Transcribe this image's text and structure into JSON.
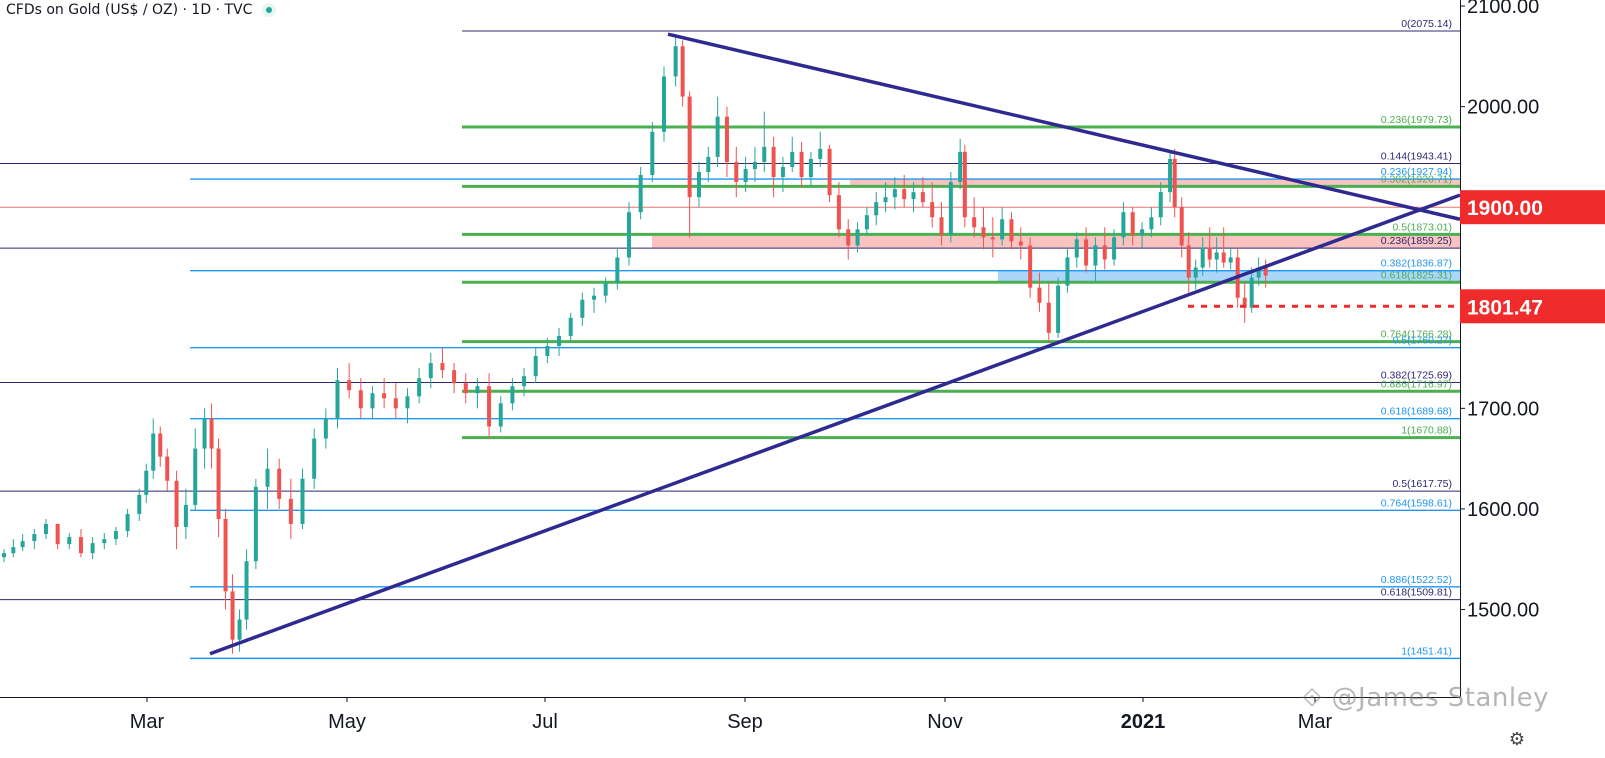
{
  "header": {
    "symbol_title": "CFDs on Gold (US$ / OZ) · 1D · TVC"
  },
  "watermark": "@James Stanley",
  "icons": {
    "settings": "gear-icon",
    "status": "status-dot-icon",
    "watermark_logo": "logo-icon"
  },
  "colors": {
    "up": "#26a69a",
    "down": "#ef5350",
    "trendline": "#2e2a8f",
    "fib_green": "#4caf50",
    "fib_blue": "#2196f3",
    "fib_navy": "#2e2a6f",
    "zone_red": "rgba(239,83,80,0.35)",
    "zone_blue": "rgba(66,165,245,0.45)",
    "price_tag_red": "#ef2b2b"
  },
  "chart_data": {
    "type": "candlestick",
    "title": "CFDs on Gold (US$ / OZ) · 1D · TVC",
    "x_axis": {
      "ticks": [
        "Mar",
        "May",
        "Jul",
        "Sep",
        "Nov",
        "2021",
        "Mar"
      ]
    },
    "y_axis": {
      "ticks": [
        "1500.00",
        "1600.00",
        "1700.00",
        "1800.00",
        "1900.00",
        "2000.00",
        "2100.00"
      ],
      "range": [
        1413,
        2106
      ]
    },
    "price_tags": [
      {
        "label": "1900.00",
        "value": 1900.0
      },
      {
        "label": "1801.47",
        "value": 1801.47
      }
    ],
    "fib_levels": [
      {
        "label": "0(2075.14)",
        "value": 2075.14,
        "set": "navy",
        "x_start": "Jun 2020"
      },
      {
        "label": "0.236(1979.73)",
        "value": 1979.73,
        "set": "green",
        "x_start": "Jun 2020"
      },
      {
        "label": "0.144(1943.41)",
        "value": 1943.41,
        "set": "navy",
        "x_start": "Jan 2020"
      },
      {
        "label": "0.236(1927.94)",
        "value": 1927.94,
        "set": "blue",
        "x_start": "Mar 2020"
      },
      {
        "label": "0.382(1920.71)",
        "value": 1920.71,
        "set": "green",
        "x_start": "Jun 2020"
      },
      {
        "label": "0.5(1873.01)",
        "value": 1873.01,
        "set": "green",
        "x_start": "Jun 2020"
      },
      {
        "label": "0.236(1859.25)",
        "value": 1859.25,
        "set": "navy",
        "x_start": "Jan 2020"
      },
      {
        "label": "0.382(1836.87)",
        "value": 1836.87,
        "set": "blue",
        "x_start": "Mar 2020"
      },
      {
        "label": "0.618(1825.31)",
        "value": 1825.31,
        "set": "green",
        "x_start": "Jun 2020"
      },
      {
        "label": "0.764(1766.28)",
        "value": 1766.28,
        "set": "green",
        "x_start": "Jun 2020"
      },
      {
        "label": "0.5(1760.27)",
        "value": 1760.27,
        "set": "blue",
        "x_start": "Mar 2020"
      },
      {
        "label": "0.382(1725.69)",
        "value": 1725.69,
        "set": "navy",
        "x_start": "Jan 2020"
      },
      {
        "label": "0.886(1716.97)",
        "value": 1716.97,
        "set": "green",
        "x_start": "Jun 2020"
      },
      {
        "label": "0.618(1689.68)",
        "value": 1689.68,
        "set": "blue",
        "x_start": "Mar 2020"
      },
      {
        "label": "1(1670.88)",
        "value": 1670.88,
        "set": "green",
        "x_start": "Jun 2020"
      },
      {
        "label": "0.5(1617.75)",
        "value": 1617.75,
        "set": "navy",
        "x_start": "Jan 2020"
      },
      {
        "label": "0.764(1598.61)",
        "value": 1598.61,
        "set": "blue",
        "x_start": "Mar 2020"
      },
      {
        "label": "0.886(1522.52)",
        "value": 1522.52,
        "set": "blue",
        "x_start": "Mar 2020"
      },
      {
        "label": "0.618(1509.81)",
        "value": 1509.81,
        "set": "navy",
        "x_start": "Jan 2020"
      },
      {
        "label": "1(1451.41)",
        "value": 1451.41,
        "set": "blue",
        "x_start": "Mar 2020"
      }
    ],
    "horizontal_lines": [
      {
        "value": 1900.0,
        "color": "red-thin"
      }
    ],
    "zones": [
      {
        "name": "resistance-zone",
        "from": 1920.7,
        "to": 1927.9,
        "x_start": "Oct 2020",
        "color": "red"
      },
      {
        "name": "resistance-zone",
        "from": 1859.25,
        "to": 1873.0,
        "x_start": "Aug 2020",
        "color": "red"
      },
      {
        "name": "support-zone",
        "from": 1825.3,
        "to": 1836.9,
        "x_start": "Nov 2020",
        "color": "blue"
      }
    ],
    "dotted_line": {
      "value": 1801.47,
      "x_start": "Jan 2021",
      "color": "red"
    },
    "trendlines": [
      {
        "name": "falling-trendline",
        "from": [
          "Aug 7 2020",
          2072
        ],
        "to": [
          "beyond chart",
          1888
        ]
      },
      {
        "name": "rising-trendline",
        "from": [
          "Mar 2020",
          1456
        ],
        "to": [
          "beyond chart",
          1912
        ]
      }
    ],
    "candles": [
      [
        "2020-01-02",
        1552,
        1560,
        1547,
        1556
      ],
      [
        "2020-01-06",
        1556,
        1570,
        1552,
        1562
      ],
      [
        "2020-01-10",
        1562,
        1575,
        1558,
        1568
      ],
      [
        "2020-01-15",
        1568,
        1580,
        1560,
        1575
      ],
      [
        "2020-01-20",
        1575,
        1590,
        1570,
        1585
      ],
      [
        "2020-01-25",
        1585,
        1582,
        1560,
        1565
      ],
      [
        "2020-01-30",
        1565,
        1576,
        1560,
        1572
      ],
      [
        "2020-02-04",
        1572,
        1580,
        1552,
        1556
      ],
      [
        "2020-02-09",
        1556,
        1572,
        1550,
        1566
      ],
      [
        "2020-02-14",
        1566,
        1576,
        1560,
        1570
      ],
      [
        "2020-02-19",
        1570,
        1582,
        1564,
        1578
      ],
      [
        "2020-02-24",
        1578,
        1600,
        1572,
        1595
      ],
      [
        "2020-02-29",
        1595,
        1620,
        1588,
        1614
      ],
      [
        "2020-03-03",
        1614,
        1645,
        1606,
        1638
      ],
      [
        "2020-03-06",
        1638,
        1690,
        1630,
        1675
      ],
      [
        "2020-03-09",
        1675,
        1682,
        1642,
        1652
      ],
      [
        "2020-03-12",
        1652,
        1660,
        1618,
        1628
      ],
      [
        "2020-03-16",
        1628,
        1638,
        1560,
        1582
      ],
      [
        "2020-03-20",
        1582,
        1620,
        1570,
        1604
      ],
      [
        "2020-03-24",
        1604,
        1680,
        1598,
        1660
      ],
      [
        "2020-03-28",
        1660,
        1700,
        1640,
        1690
      ],
      [
        "2020-03-31",
        1690,
        1705,
        1640,
        1660
      ],
      [
        "2020-04-03",
        1660,
        1670,
        1572,
        1590
      ],
      [
        "2020-04-06",
        1590,
        1600,
        1500,
        1518
      ],
      [
        "2020-04-09",
        1518,
        1535,
        1456,
        1470
      ],
      [
        "2020-04-12",
        1470,
        1500,
        1458,
        1490
      ],
      [
        "2020-04-15",
        1490,
        1560,
        1480,
        1548
      ],
      [
        "2020-04-19",
        1548,
        1630,
        1540,
        1622
      ],
      [
        "2020-04-24",
        1622,
        1660,
        1600,
        1640
      ],
      [
        "2020-04-29",
        1640,
        1650,
        1600,
        1610
      ],
      [
        "2020-05-04",
        1610,
        1630,
        1570,
        1585
      ],
      [
        "2020-05-09",
        1585,
        1640,
        1580,
        1630
      ],
      [
        "2020-05-14",
        1630,
        1680,
        1620,
        1670
      ],
      [
        "2020-05-19",
        1670,
        1700,
        1660,
        1690
      ],
      [
        "2020-05-24",
        1690,
        1740,
        1680,
        1728
      ],
      [
        "2020-05-29",
        1728,
        1745,
        1710,
        1718
      ],
      [
        "2020-06-03",
        1718,
        1730,
        1690,
        1700
      ],
      [
        "2020-06-08",
        1700,
        1722,
        1690,
        1715
      ],
      [
        "2020-06-13",
        1715,
        1730,
        1700,
        1710
      ],
      [
        "2020-06-18",
        1710,
        1725,
        1690,
        1700
      ],
      [
        "2020-06-23",
        1700,
        1720,
        1685,
        1712
      ],
      [
        "2020-06-28",
        1712,
        1740,
        1705,
        1730
      ],
      [
        "2020-07-03",
        1730,
        1755,
        1720,
        1745
      ],
      [
        "2020-07-08",
        1745,
        1760,
        1730,
        1738
      ],
      [
        "2020-07-13",
        1738,
        1745,
        1715,
        1725
      ],
      [
        "2020-07-18",
        1725,
        1735,
        1705,
        1715
      ],
      [
        "2020-07-23",
        1715,
        1730,
        1700,
        1722
      ],
      [
        "2020-07-28",
        1722,
        1735,
        1670,
        1682
      ],
      [
        "2020-08-02",
        1682,
        1712,
        1676,
        1705
      ],
      [
        "2020-08-07",
        1705,
        1730,
        1698,
        1722
      ],
      [
        "2020-08-12",
        1722,
        1740,
        1712,
        1732
      ],
      [
        "2020-08-17",
        1732,
        1760,
        1725,
        1752
      ],
      [
        "2020-08-22",
        1752,
        1770,
        1745,
        1762
      ],
      [
        "2020-08-27",
        1762,
        1780,
        1752,
        1772
      ],
      [
        "2020-09-01",
        1772,
        1795,
        1765,
        1790
      ],
      [
        "2020-09-06",
        1790,
        1815,
        1782,
        1808
      ],
      [
        "2020-09-11",
        1808,
        1820,
        1795,
        1812
      ],
      [
        "2020-09-16",
        1812,
        1830,
        1805,
        1825
      ],
      [
        "2020-09-21",
        1825,
        1860,
        1818,
        1850
      ],
      [
        "2020-09-26",
        1850,
        1905,
        1842,
        1895
      ],
      [
        "2020-10-01",
        1895,
        1940,
        1888,
        1932
      ],
      [
        "2020-10-06",
        1932,
        1985,
        1925,
        1975
      ],
      [
        "2020-10-11",
        1975,
        2040,
        1965,
        2030
      ],
      [
        "2020-10-16",
        2030,
        2072,
        2020,
        2060
      ],
      [
        "2020-10-19",
        2060,
        2066,
        2000,
        2010
      ],
      [
        "2020-10-22",
        2010,
        2015,
        1870,
        1910
      ],
      [
        "2020-10-26",
        1910,
        1945,
        1900,
        1935
      ],
      [
        "2020-10-30",
        1935,
        1960,
        1925,
        1950
      ],
      [
        "2020-11-03",
        1950,
        2010,
        1940,
        1990
      ],
      [
        "2020-11-07",
        1990,
        2000,
        1930,
        1945
      ],
      [
        "2020-11-11",
        1945,
        1960,
        1910,
        1925
      ],
      [
        "2020-11-15",
        1925,
        1950,
        1915,
        1938
      ],
      [
        "2020-11-19",
        1938,
        1960,
        1925,
        1945
      ],
      [
        "2020-11-23",
        1945,
        1995,
        1935,
        1960
      ],
      [
        "2020-11-27",
        1960,
        1970,
        1910,
        1930
      ],
      [
        "2020-12-01",
        1930,
        1950,
        1915,
        1940
      ],
      [
        "2020-12-05",
        1940,
        1970,
        1935,
        1955
      ],
      [
        "2020-12-09",
        1955,
        1965,
        1920,
        1930
      ],
      [
        "2020-12-13",
        1930,
        1955,
        1920,
        1948
      ],
      [
        "2020-12-17",
        1948,
        1975,
        1940,
        1958
      ],
      [
        "2020-12-21",
        1958,
        1962,
        1905,
        1912
      ],
      [
        "2020-12-25",
        1912,
        1925,
        1870,
        1878
      ],
      [
        "2020-12-29",
        1878,
        1888,
        1848,
        1862
      ],
      [
        "2021-01-02",
        1862,
        1885,
        1855,
        1878
      ],
      [
        "2021-01-06",
        1878,
        1900,
        1872,
        1892
      ],
      [
        "2021-01-10",
        1892,
        1915,
        1882,
        1905
      ],
      [
        "2021-01-14",
        1905,
        1925,
        1895,
        1910
      ],
      [
        "2021-01-18",
        1910,
        1930,
        1898,
        1918
      ],
      [
        "2021-01-22",
        1918,
        1932,
        1900,
        1908
      ],
      [
        "2021-01-26",
        1908,
        1925,
        1895,
        1915
      ],
      [
        "2021-01-30",
        1915,
        1930,
        1900,
        1905
      ],
      [
        "2021-02-03",
        1905,
        1925,
        1880,
        1890
      ],
      [
        "2021-02-07",
        1890,
        1905,
        1862,
        1872
      ],
      [
        "2021-02-11",
        1872,
        1935,
        1865,
        1925
      ],
      [
        "2021-02-15",
        1925,
        1968,
        1918,
        1955
      ],
      [
        "2021-02-17",
        1955,
        1962,
        1880,
        1890
      ],
      [
        "2021-02-21",
        1890,
        1910,
        1870,
        1880
      ],
      [
        "2021-02-25",
        1880,
        1900,
        1858,
        1870
      ],
      [
        "2021-03-01",
        1870,
        1890,
        1850,
        1868
      ],
      [
        "2021-03-05",
        1868,
        1900,
        1862,
        1888
      ],
      [
        "2021-03-09",
        1888,
        1895,
        1858,
        1866
      ],
      [
        "2021-03-13",
        1866,
        1880,
        1848,
        1862
      ],
      [
        "2021-03-17",
        1862,
        1870,
        1810,
        1820
      ],
      [
        "2021-03-21",
        1820,
        1835,
        1796,
        1805
      ],
      [
        "2021-03-25",
        1805,
        1825,
        1765,
        1775
      ],
      [
        "2021-03-29",
        1775,
        1830,
        1770,
        1822
      ],
      [
        "2021-04-02",
        1822,
        1860,
        1815,
        1850
      ],
      [
        "2021-04-06",
        1850,
        1875,
        1840,
        1868
      ],
      [
        "2021-04-10",
        1868,
        1880,
        1835,
        1842
      ],
      [
        "2021-04-14",
        1842,
        1870,
        1825,
        1862
      ],
      [
        "2021-04-18",
        1862,
        1880,
        1838,
        1848
      ],
      [
        "2021-04-22",
        1848,
        1878,
        1842,
        1870
      ],
      [
        "2021-04-26",
        1870,
        1905,
        1862,
        1895
      ],
      [
        "2021-04-30",
        1895,
        1900,
        1862,
        1872
      ],
      [
        "2021-05-04",
        1872,
        1885,
        1860,
        1878
      ],
      [
        "2021-05-08",
        1878,
        1900,
        1870,
        1890
      ],
      [
        "2021-05-12",
        1890,
        1925,
        1882,
        1915
      ],
      [
        "2021-05-16",
        1915,
        1955,
        1905,
        1948
      ],
      [
        "2021-05-18",
        1948,
        1958,
        1890,
        1900
      ],
      [
        "2021-05-21",
        1900,
        1910,
        1850,
        1862
      ],
      [
        "2021-05-24",
        1862,
        1875,
        1815,
        1830
      ],
      [
        "2021-05-27",
        1830,
        1848,
        1818,
        1840
      ],
      [
        "2021-05-30",
        1840,
        1870,
        1832,
        1860
      ],
      [
        "2021-06-02",
        1860,
        1880,
        1840,
        1848
      ],
      [
        "2021-06-05",
        1848,
        1870,
        1835,
        1855
      ],
      [
        "2021-06-08",
        1855,
        1880,
        1840,
        1845
      ],
      [
        "2021-06-11",
        1845,
        1860,
        1838,
        1850
      ],
      [
        "2021-06-14",
        1850,
        1860,
        1800,
        1810
      ],
      [
        "2021-06-17",
        1810,
        1825,
        1785,
        1800
      ],
      [
        "2021-06-20",
        1800,
        1840,
        1795,
        1830
      ],
      [
        "2021-06-23",
        1830,
        1850,
        1822,
        1840
      ],
      [
        "2021-06-26",
        1840,
        1848,
        1820,
        1832
      ]
    ]
  }
}
